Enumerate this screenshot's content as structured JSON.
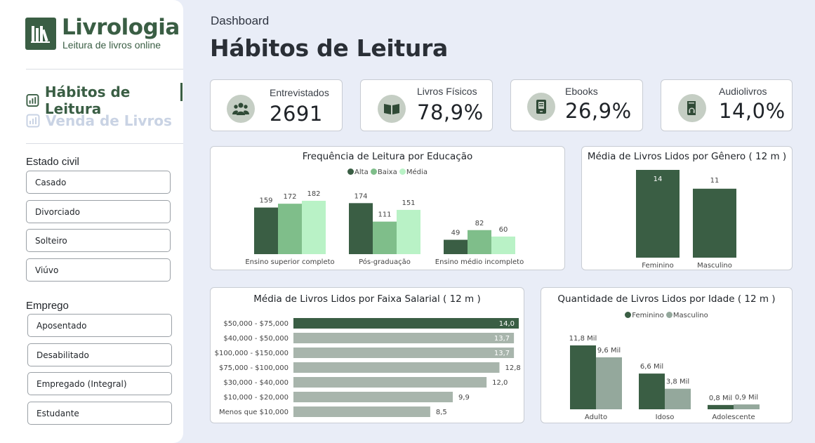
{
  "brand": {
    "name": "Livrologia",
    "tagline": "Leitura de livros online"
  },
  "nav": {
    "items": [
      {
        "label": "Hábitos de Leitura",
        "active": true
      },
      {
        "label": "Venda de Livros",
        "active": false
      }
    ]
  },
  "filters": {
    "estado_civil": {
      "title": "Estado civil",
      "options": [
        "Casado",
        "Divorciado",
        "Solteiro",
        "Viúvo"
      ]
    },
    "emprego": {
      "title": "Emprego",
      "options": [
        "Aposentado",
        "Desabilitado",
        "Empregado (Integral)",
        "Estudante"
      ]
    }
  },
  "header": {
    "breadcrumb": "Dashboard",
    "title": "Hábitos de Leitura"
  },
  "kpis": [
    {
      "label": "Entrevistados",
      "value": "2691",
      "icon": "people-icon"
    },
    {
      "label": "Livros Físicos",
      "value": "78,9%",
      "icon": "open-book-icon"
    },
    {
      "label": "Ebooks",
      "value": "26,9%",
      "icon": "ebook-reader-icon"
    },
    {
      "label": "Audiolivros",
      "value": "14,0%",
      "icon": "audiobook-icon"
    }
  ],
  "colors": {
    "primary": "#3a5e44",
    "mid": "#7fbe8a",
    "light": "#b9f2c6",
    "gray": "#94a89c"
  },
  "chart_data": [
    {
      "type": "bar",
      "title": "Frequência de Leitura por Educação",
      "categories": [
        "Ensino superior completo",
        "Pós-graduação",
        "Ensino médio incompleto"
      ],
      "series": [
        {
          "name": "Alta",
          "values": [
            159,
            174,
            49
          ],
          "labels": [
            "159",
            "174",
            "49"
          ]
        },
        {
          "name": "Baixa",
          "values": [
            172,
            111,
            82
          ],
          "labels": [
            "172",
            "111",
            "82"
          ]
        },
        {
          "name": "Média",
          "values": [
            182,
            151,
            60
          ],
          "labels": [
            "182",
            "151",
            "60"
          ]
        }
      ],
      "legend": "top-center",
      "grid": false
    },
    {
      "type": "bar",
      "title": "Média de Livros Lidos por Gênero ( 12 m )",
      "categories": [
        "Feminino",
        "Masculino"
      ],
      "values": [
        14,
        11
      ],
      "labels": [
        "14",
        "11"
      ],
      "grid": false
    },
    {
      "type": "bar",
      "orientation": "horizontal",
      "title": "Média de Livros Lidos por Faixa Salarial ( 12 m )",
      "categories": [
        "$50,000 - $75,000",
        "$40,000 - $50,000",
        "$100,000 - $150,000",
        "$75,000 - $100,000",
        "$30,000 - $40,000",
        "$10,000 - $20,000",
        "Menos que $10,000"
      ],
      "values": [
        14.0,
        13.7,
        13.7,
        12.8,
        12.0,
        9.9,
        8.5
      ],
      "labels": [
        "14,0",
        "13,7",
        "13,7",
        "12,8",
        "12,0",
        "9,9",
        "8,5"
      ],
      "grid": false
    },
    {
      "type": "bar",
      "title": "Quantidade de Livros Lidos por Idade ( 12 m )",
      "categories": [
        "Adulto",
        "Idoso",
        "Adolescente"
      ],
      "series": [
        {
          "name": "Feminino",
          "values": [
            11800,
            6600,
            800
          ],
          "labels": [
            "11,8 Mil",
            "6,6 Mil",
            "0,8 Mil"
          ]
        },
        {
          "name": "Masculino",
          "values": [
            9600,
            3800,
            900
          ],
          "labels": [
            "9,6 Mil",
            "3,8 Mil",
            "0,9 Mil"
          ]
        }
      ],
      "legend": "top-center",
      "grid": false
    }
  ]
}
